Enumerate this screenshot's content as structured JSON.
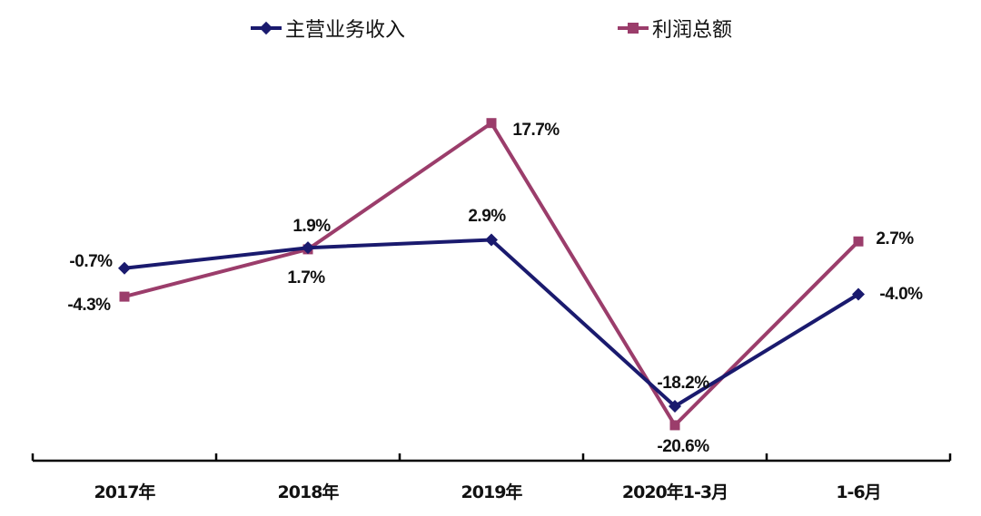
{
  "chart_data": {
    "type": "line",
    "title": "",
    "xlabel": "",
    "ylabel": "",
    "categories": [
      "2017年",
      "2018年",
      "2019年",
      "2020年1-3月",
      "1-6月"
    ],
    "series": [
      {
        "name": "主营业务收入",
        "color": "#1a1a6e",
        "marker": "diamond",
        "values": [
          -0.7,
          1.9,
          2.9,
          -18.2,
          -4.0
        ],
        "labels": [
          "-0.7%",
          "1.9%",
          "2.9%",
          "-18.2%",
          "-4.0%"
        ]
      },
      {
        "name": "利润总额",
        "color": "#9b3d6b",
        "marker": "square",
        "values": [
          -4.3,
          1.7,
          17.7,
          -20.6,
          2.7
        ],
        "labels": [
          "-4.3%",
          "1.7%",
          "17.7%",
          "-20.6%",
          "2.7%"
        ]
      }
    ],
    "legend_position": "top",
    "grid": false,
    "y_axis_visible": false,
    "unit": "%"
  },
  "legend": {
    "items": [
      {
        "label": "主营业务收入",
        "color": "#1a1a6e"
      },
      {
        "label": "利润总额",
        "color": "#9b3d6b"
      }
    ]
  },
  "x_axis": {
    "labels": [
      "2017年",
      "2018年",
      "2019年",
      "2020年1-3月",
      "1-6月"
    ]
  },
  "point_labels": {
    "revenue": [
      "-0.7%",
      "1.9%",
      "2.9%",
      "-18.2%",
      "-4.0%"
    ],
    "profit": [
      "-4.3%",
      "1.7%",
      "17.7%",
      "-20.6%",
      "2.7%"
    ]
  }
}
